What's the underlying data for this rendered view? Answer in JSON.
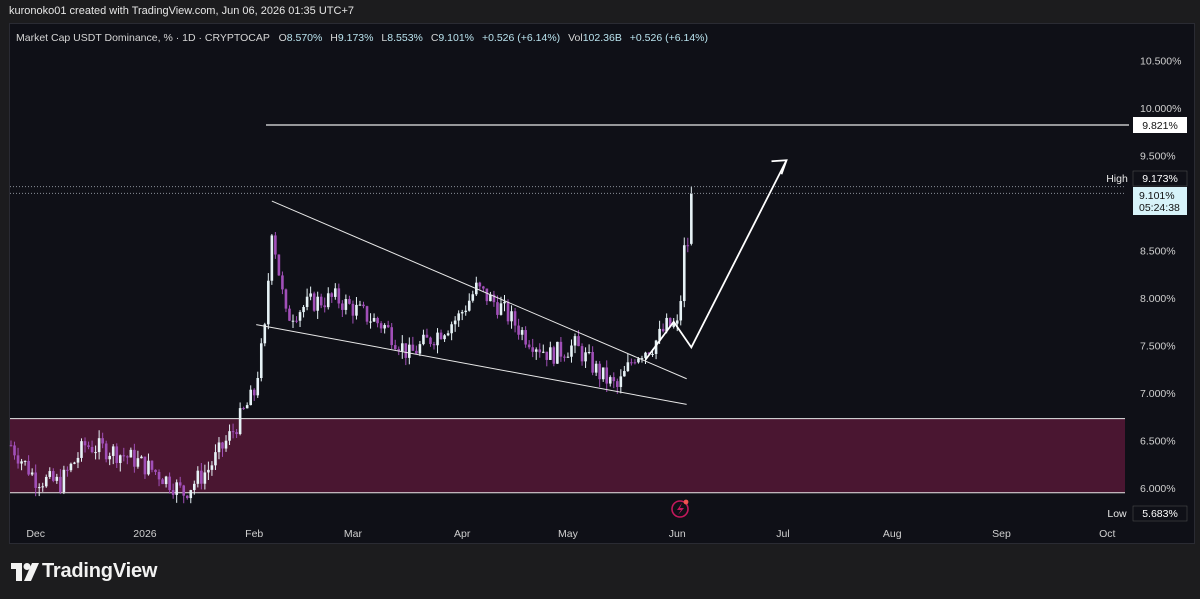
{
  "header": {
    "credit": "kuronoko01 created with TradingView.com, Jun 06, 2026 01:35 UTC+7"
  },
  "legend": {
    "symbol": "Market Cap USDT Dominance, % · 1D · CRYPTOCAP",
    "o_label": "O",
    "o_value": "8.570%",
    "h_label": "H",
    "h_value": "9.173%",
    "l_label": "L",
    "l_value": "8.553%",
    "c_label": "C",
    "c_value": "9.101%",
    "change": "+0.526 (+6.14%)",
    "vol_label": "Vol",
    "vol_value": "102.36B",
    "vol_change": "+0.526 (+6.14%)"
  },
  "price_axis": {
    "ticks": [
      "10.500%",
      "10.000%",
      "9.500%",
      "9.000%",
      "8.500%",
      "8.000%",
      "7.500%",
      "7.000%",
      "6.500%",
      "6.000%"
    ],
    "tags": {
      "level_value": "9.821%",
      "high_label": "High",
      "high_value": "9.173%",
      "last_value": "9.101%",
      "countdown": "05:24:38",
      "low_label": "Low",
      "low_value": "5.683%"
    }
  },
  "time_axis": {
    "ticks": [
      "Dec",
      "2026",
      "Feb",
      "Mar",
      "Apr",
      "May",
      "Jun",
      "Jul",
      "Aug",
      "Sep",
      "Oct"
    ]
  },
  "footer": {
    "brand": "TradingView"
  },
  "colors": {
    "background": "#0f1017",
    "candle_up": "#e6f2f6",
    "candle_down": "#a14fb8",
    "zone_fill": "#4a1631",
    "drawing_lines": "#e8e8e8",
    "last_price_tag": "#d7f3f9"
  },
  "chart_data": {
    "type": "candlestick",
    "title": "Market Cap USDT Dominance, % · 1D · CRYPTOCAP",
    "y_scale": "percent",
    "y_range": [
      5.6,
      10.8
    ],
    "x_range": [
      "2025-11-24",
      "2026-10-10"
    ],
    "last_bar": {
      "date": "2026-06-05",
      "open": 8.57,
      "high": 9.173,
      "low": 8.553,
      "close": 9.101
    },
    "series_high": 9.173,
    "series_low": 5.683,
    "daily_close_path": [
      {
        "date": "2025-11-24",
        "close": 6.45
      },
      {
        "date": "2025-12-01",
        "close": 6.1
      },
      {
        "date": "2025-12-08",
        "close": 6.05
      },
      {
        "date": "2025-12-15",
        "close": 6.45
      },
      {
        "date": "2025-12-22",
        "close": 6.4
      },
      {
        "date": "2025-12-29",
        "close": 6.3
      },
      {
        "date": "2026-01-05",
        "close": 6.15
      },
      {
        "date": "2026-01-12",
        "close": 5.95
      },
      {
        "date": "2026-01-19",
        "close": 6.2
      },
      {
        "date": "2026-01-26",
        "close": 6.6
      },
      {
        "date": "2026-02-01",
        "close": 7.0
      },
      {
        "date": "2026-02-04",
        "close": 7.65
      },
      {
        "date": "2026-02-06",
        "close": 8.75
      },
      {
        "date": "2026-02-10",
        "close": 7.8
      },
      {
        "date": "2026-02-17",
        "close": 7.95
      },
      {
        "date": "2026-02-24",
        "close": 8.0
      },
      {
        "date": "2026-03-03",
        "close": 7.85
      },
      {
        "date": "2026-03-10",
        "close": 7.7
      },
      {
        "date": "2026-03-17",
        "close": 7.4
      },
      {
        "date": "2026-03-24",
        "close": 7.6
      },
      {
        "date": "2026-03-31",
        "close": 7.8
      },
      {
        "date": "2026-04-05",
        "close": 8.1
      },
      {
        "date": "2026-04-12",
        "close": 7.9
      },
      {
        "date": "2026-04-19",
        "close": 7.6
      },
      {
        "date": "2026-04-26",
        "close": 7.4
      },
      {
        "date": "2026-05-03",
        "close": 7.5
      },
      {
        "date": "2026-05-10",
        "close": 7.2
      },
      {
        "date": "2026-05-15",
        "close": 7.05
      },
      {
        "date": "2026-05-20",
        "close": 7.4
      },
      {
        "date": "2026-05-25",
        "close": 7.5
      },
      {
        "date": "2026-05-29",
        "close": 7.7
      },
      {
        "date": "2026-06-01",
        "close": 7.7
      },
      {
        "date": "2026-06-02",
        "close": 8.0
      },
      {
        "date": "2026-06-03",
        "close": 8.5
      },
      {
        "date": "2026-06-04",
        "close": 8.57
      },
      {
        "date": "2026-06-05",
        "close": 9.101
      }
    ],
    "annotations": {
      "horizontal_level": 9.821,
      "demand_zone": [
        5.95,
        6.73
      ],
      "wedge_upper": [
        {
          "date": "2026-02-06",
          "value": 9.02
        },
        {
          "date": "2026-05-29",
          "value": 7.15
        }
      ],
      "wedge_lower": [
        {
          "date": "2026-02-01",
          "value": 7.72
        },
        {
          "date": "2026-05-29",
          "value": 6.88
        }
      ],
      "projection_path": [
        {
          "date": "2026-05-23",
          "value": 7.35
        },
        {
          "date": "2026-05-31",
          "value": 7.75
        },
        {
          "date": "2026-06-05",
          "value": 7.48
        },
        {
          "date": "2026-07-02",
          "value": 9.45
        }
      ]
    }
  }
}
